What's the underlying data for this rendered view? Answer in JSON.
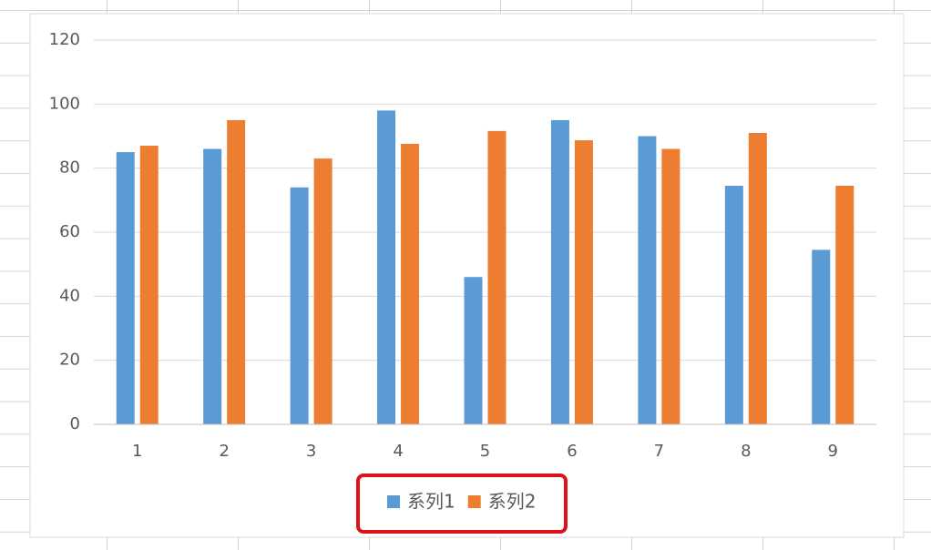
{
  "chart_data": {
    "type": "bar",
    "categories": [
      "1",
      "2",
      "3",
      "4",
      "5",
      "6",
      "7",
      "8",
      "9"
    ],
    "series": [
      {
        "name": "系列1",
        "color": "#5b9bd5",
        "values": [
          85,
          86,
          74,
          98,
          46,
          95,
          90,
          74.5,
          54.5
        ]
      },
      {
        "name": "系列2",
        "color": "#ed7d31",
        "values": [
          87,
          95,
          83,
          87.6,
          91.6,
          88.7,
          86,
          91,
          74.5
        ]
      }
    ],
    "ylim": [
      0,
      120
    ],
    "yticks": [
      0,
      20,
      40,
      60,
      80,
      100,
      120
    ],
    "grid": true,
    "legend": "bottom"
  }
}
